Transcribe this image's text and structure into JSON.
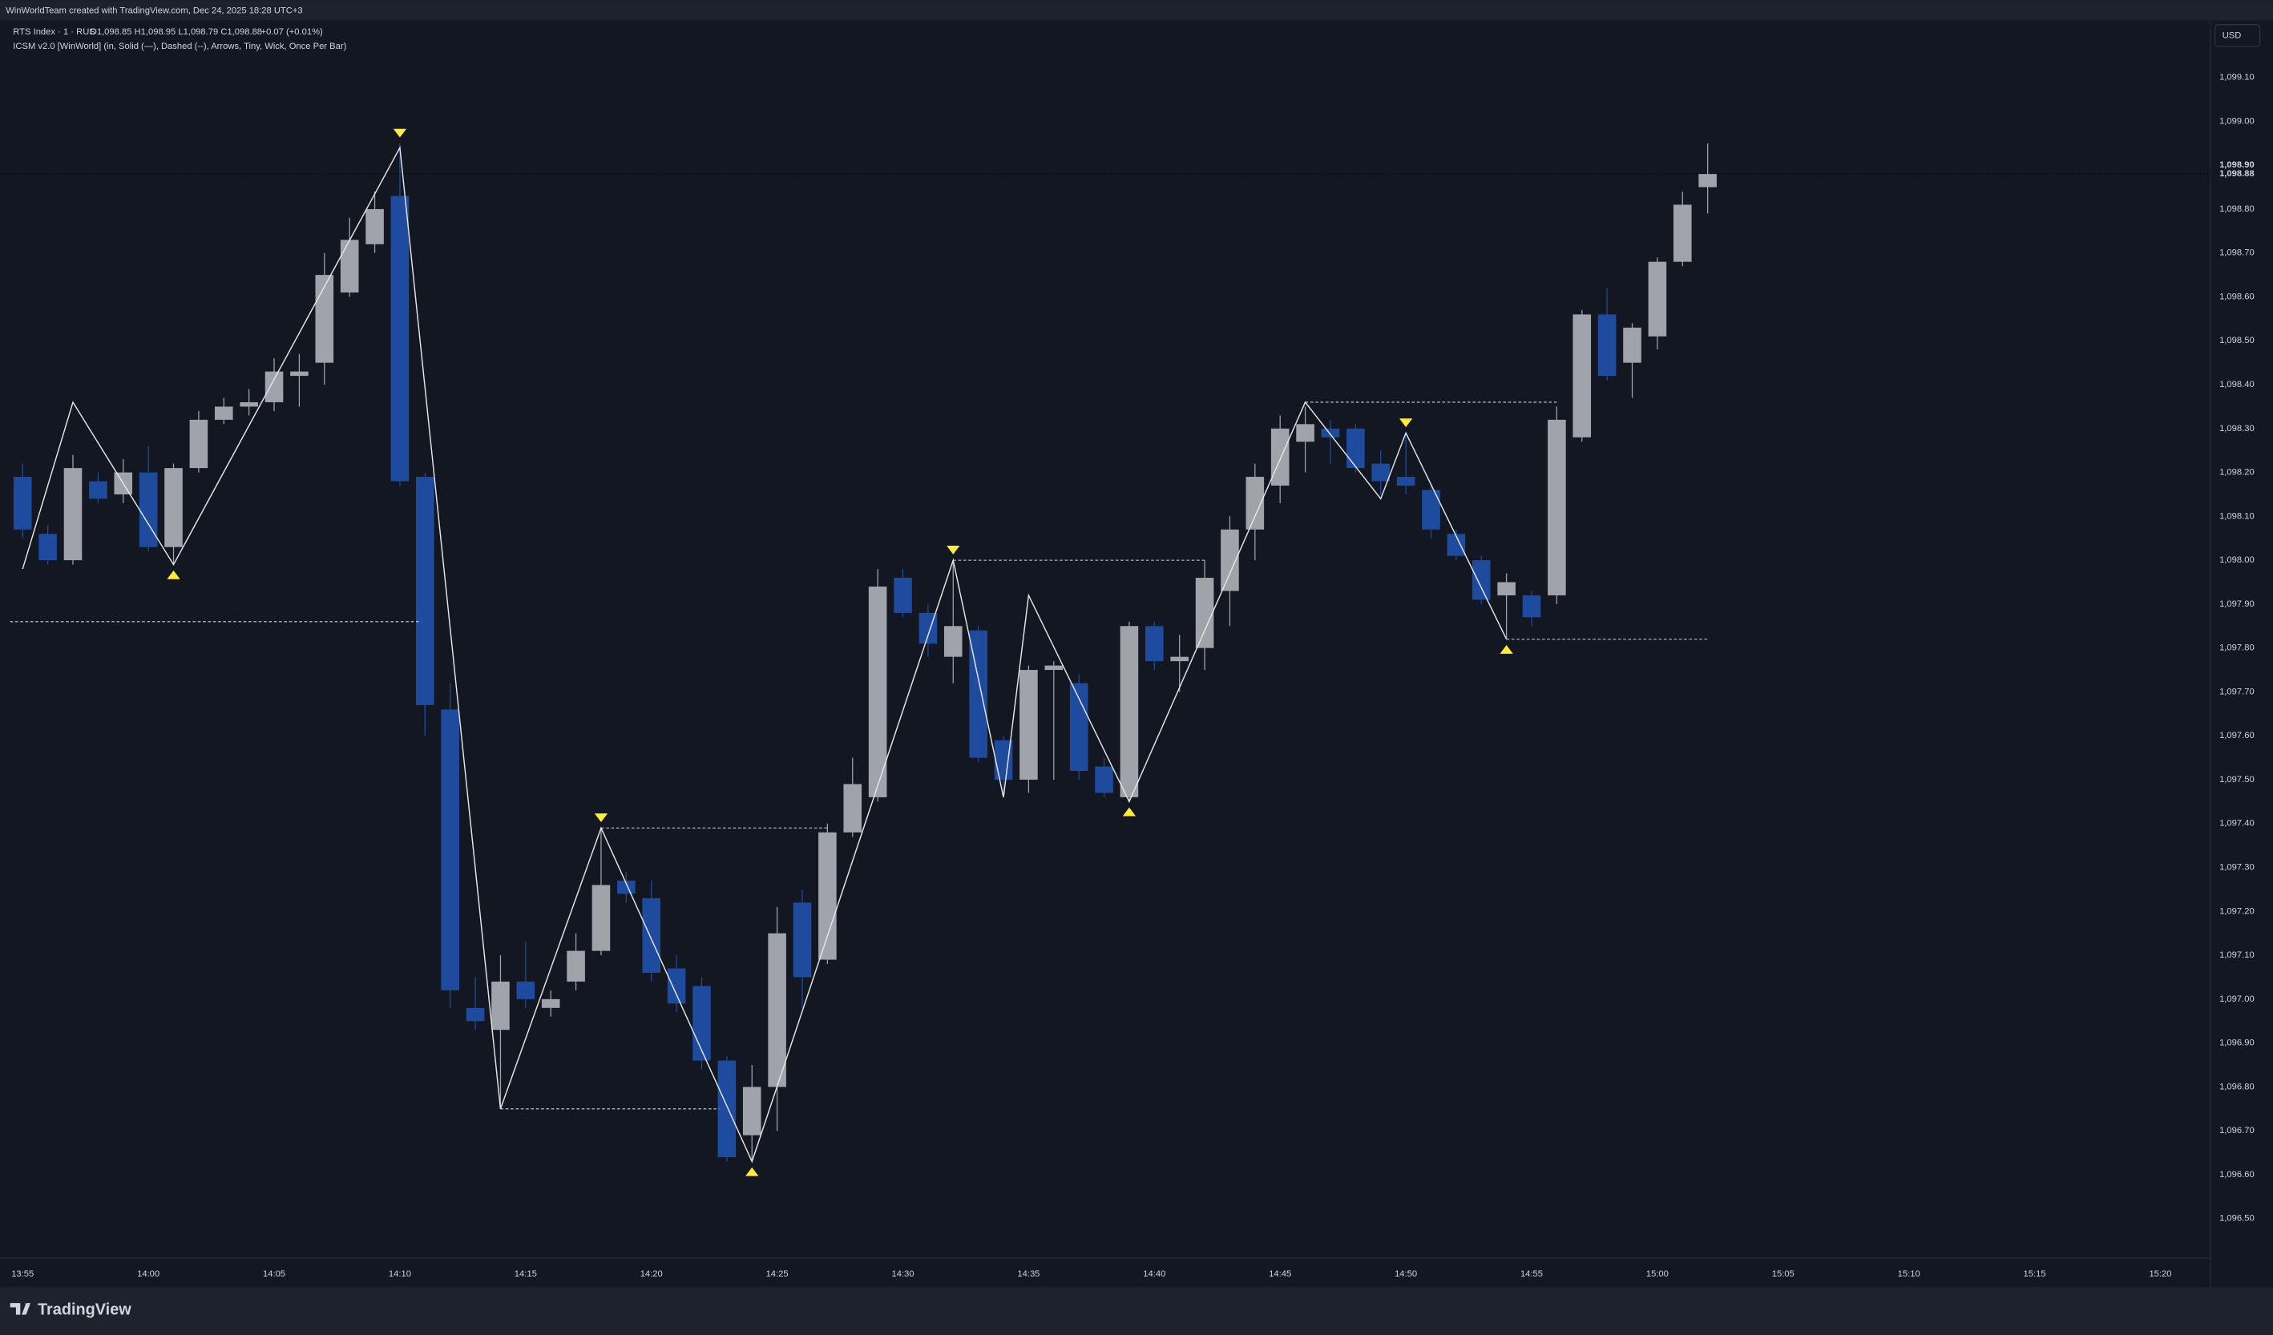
{
  "header": {
    "credit": "WinWorldTeam created with TradingView.com, Dec 24, 2025 18:28 UTC+3"
  },
  "footer": {
    "logo": "TradingView"
  },
  "chart_data": {
    "type": "candlestick",
    "title": "RTS Index · 1 · RUS",
    "ohlc_legend": "O1,098.85  H1,098.95  L1,098.79  C1,098.88",
    "change_legend": "+0.07 (+0.01%)",
    "indicator": "ICSM v2.0 [WinWorld] (in, Solid (—), Dashed (--), Arrows, Tiny, Wick, Once Per Bar)",
    "currency": "USD",
    "up_color": "#a1a3ab",
    "down_color": "#1f4b9e",
    "x": [
      835,
      836,
      837,
      838,
      839,
      840,
      841,
      842,
      843,
      844,
      845,
      846,
      847,
      848,
      849,
      850,
      851,
      852,
      853,
      854,
      855,
      856,
      857,
      858,
      859,
      860,
      861,
      862,
      863,
      864,
      865,
      866,
      867,
      868,
      869,
      870,
      871,
      872,
      873,
      874,
      875,
      876,
      877,
      878,
      879,
      880,
      881,
      882,
      883,
      884,
      885,
      886,
      887,
      888,
      889,
      890,
      891,
      892,
      893,
      894,
      895,
      896,
      897,
      898,
      899,
      900,
      901,
      902
    ],
    "open": [
      1098.19,
      1098.06,
      1098.0,
      1098.18,
      1098.15,
      1098.2,
      1098.03,
      1098.21,
      1098.32,
      1098.35,
      1098.36,
      1098.42,
      1098.45,
      1098.61,
      1098.72,
      1098.83,
      1098.19,
      1097.66,
      1096.98,
      1096.93,
      1097.04,
      1096.98,
      1097.04,
      1097.11,
      1097.27,
      1097.23,
      1097.07,
      1097.03,
      1096.86,
      1096.69,
      1096.8,
      1097.22,
      1097.09,
      1097.38,
      1097.46,
      1097.96,
      1097.88,
      1097.78,
      1097.84,
      1097.59,
      1097.5,
      1097.75,
      1097.72,
      1097.53,
      1097.46,
      1097.85,
      1097.77,
      1097.8,
      1097.93,
      1098.07,
      1098.17,
      1098.27,
      1098.3,
      1098.3,
      1098.22,
      1098.19,
      1098.16,
      1098.06,
      1098.0,
      1097.92,
      1097.92,
      1097.92,
      1098.28,
      1098.56,
      1098.45,
      1098.51,
      1098.68,
      1098.85
    ],
    "high": [
      1098.22,
      1098.08,
      1098.24,
      1098.2,
      1098.23,
      1098.26,
      1098.22,
      1098.34,
      1098.37,
      1098.39,
      1098.46,
      1098.47,
      1098.7,
      1098.78,
      1098.84,
      1098.95,
      1098.2,
      1097.72,
      1097.05,
      1097.1,
      1097.13,
      1097.02,
      1097.15,
      1097.39,
      1097.29,
      1097.27,
      1097.1,
      1097.05,
      1096.87,
      1096.85,
      1097.21,
      1097.25,
      1097.4,
      1097.55,
      1097.98,
      1097.98,
      1097.9,
      1098.0,
      1097.85,
      1097.6,
      1097.76,
      1097.77,
      1097.74,
      1097.55,
      1097.86,
      1097.86,
      1097.83,
      1098.0,
      1098.1,
      1098.22,
      1098.33,
      1098.35,
      1098.32,
      1098.31,
      1098.25,
      1098.29,
      1098.17,
      1098.07,
      1098.01,
      1097.97,
      1097.93,
      1098.35,
      1098.57,
      1098.62,
      1098.54,
      1098.69,
      1098.84,
      1098.95
    ],
    "low": [
      1098.05,
      1097.99,
      1097.99,
      1098.13,
      1098.13,
      1098.02,
      1097.99,
      1098.2,
      1098.31,
      1098.33,
      1098.34,
      1098.35,
      1098.4,
      1098.6,
      1098.7,
      1098.17,
      1097.6,
      1096.98,
      1096.93,
      1096.75,
      1096.98,
      1096.96,
      1097.02,
      1097.1,
      1097.22,
      1097.04,
      1096.97,
      1096.84,
      1096.63,
      1096.63,
      1096.7,
      1096.98,
      1097.08,
      1097.37,
      1097.45,
      1097.87,
      1097.78,
      1097.72,
      1097.54,
      1097.46,
      1097.47,
      1097.5,
      1097.5,
      1097.46,
      1097.45,
      1097.75,
      1097.7,
      1097.75,
      1097.85,
      1098.0,
      1098.13,
      1098.2,
      1098.22,
      1098.2,
      1098.15,
      1098.15,
      1098.05,
      1098.0,
      1097.9,
      1097.82,
      1097.85,
      1097.9,
      1098.27,
      1098.41,
      1098.37,
      1098.48,
      1098.67,
      1098.79
    ],
    "close": [
      1098.07,
      1098.0,
      1098.21,
      1098.14,
      1098.2,
      1098.03,
      1098.21,
      1098.32,
      1098.35,
      1098.36,
      1098.43,
      1098.43,
      1098.65,
      1098.73,
      1098.8,
      1098.18,
      1097.67,
      1097.02,
      1096.95,
      1097.04,
      1097.0,
      1097.0,
      1097.11,
      1097.26,
      1097.24,
      1097.06,
      1096.99,
      1096.86,
      1096.64,
      1096.8,
      1097.15,
      1097.05,
      1097.38,
      1097.49,
      1097.94,
      1097.88,
      1097.81,
      1097.85,
      1097.55,
      1097.5,
      1097.75,
      1097.76,
      1097.52,
      1097.47,
      1097.85,
      1097.77,
      1097.78,
      1097.96,
      1098.07,
      1098.19,
      1098.3,
      1098.31,
      1098.28,
      1098.21,
      1098.18,
      1098.17,
      1098.07,
      1098.01,
      1097.91,
      1097.95,
      1097.87,
      1098.32,
      1098.56,
      1098.42,
      1098.53,
      1098.68,
      1098.81,
      1098.88
    ],
    "zigzag": {
      "color": "#e6e6e6",
      "x": [
        835,
        837,
        841,
        850,
        854,
        858,
        864,
        872,
        874,
        875,
        879,
        886,
        889,
        890,
        894
      ],
      "y": [
        1097.98,
        1098.36,
        1097.99,
        1098.94,
        1096.75,
        1097.39,
        1096.63,
        1098.0,
        1097.46,
        1097.92,
        1097.45,
        1098.36,
        1098.14,
        1098.29,
        1097.82
      ]
    },
    "levels": [
      {
        "x": [
          834.5,
          850.85
        ],
        "y": 1097.86
      },
      {
        "x": [
          854,
          862.7
        ],
        "y": 1096.75
      },
      {
        "x": [
          858,
          867
        ],
        "y": 1097.39
      },
      {
        "x": [
          872,
          882
        ],
        "y": 1098.0
      },
      {
        "x": [
          886,
          896
        ],
        "y": 1098.36
      },
      {
        "x": [
          894,
          902
        ],
        "y": 1097.82
      }
    ],
    "marker_color": "#ffeb3b",
    "pivot_highs": [
      850,
      858,
      872,
      890
    ],
    "pivot_lows": [
      841,
      864,
      879,
      894
    ],
    "price_labels": [
      {
        "value": 1098.9,
        "label": "1,098.90"
      },
      {
        "value": 1098.88,
        "label": "1,098.88"
      }
    ],
    "grid": false,
    "xlim": [
      834.1,
      922.0
    ],
    "xticks": [
      {
        "value": 835,
        "label": "13:55"
      },
      {
        "value": 840,
        "label": "14:00"
      },
      {
        "value": 845,
        "label": "14:05"
      },
      {
        "value": 850,
        "label": "14:10"
      },
      {
        "value": 855,
        "label": "14:15"
      },
      {
        "value": 860,
        "label": "14:20"
      },
      {
        "value": 865,
        "label": "14:25"
      },
      {
        "value": 870,
        "label": "14:30"
      },
      {
        "value": 875,
        "label": "14:35"
      },
      {
        "value": 880,
        "label": "14:40"
      },
      {
        "value": 885,
        "label": "14:45"
      },
      {
        "value": 890,
        "label": "14:50"
      },
      {
        "value": 895,
        "label": "14:55"
      },
      {
        "value": 900,
        "label": "15:00"
      },
      {
        "value": 905,
        "label": "15:05"
      },
      {
        "value": 910,
        "label": "15:10"
      },
      {
        "value": 915,
        "label": "15:15"
      },
      {
        "value": 920,
        "label": "15:20"
      }
    ],
    "ylim": [
      1096.41,
      1099.23
    ],
    "yticks": [
      {
        "value": 1096.5,
        "label": "1,096.50"
      },
      {
        "value": 1096.6,
        "label": "1,096.60"
      },
      {
        "value": 1096.7,
        "label": "1,096.70"
      },
      {
        "value": 1096.8,
        "label": "1,096.80"
      },
      {
        "value": 1096.9,
        "label": "1,096.90"
      },
      {
        "value": 1097.0,
        "label": "1,097.00"
      },
      {
        "value": 1097.1,
        "label": "1,097.10"
      },
      {
        "value": 1097.2,
        "label": "1,097.20"
      },
      {
        "value": 1097.3,
        "label": "1,097.30"
      },
      {
        "value": 1097.4,
        "label": "1,097.40"
      },
      {
        "value": 1097.5,
        "label": "1,097.50"
      },
      {
        "value": 1097.6,
        "label": "1,097.60"
      },
      {
        "value": 1097.7,
        "label": "1,097.70"
      },
      {
        "value": 1097.8,
        "label": "1,097.80"
      },
      {
        "value": 1097.9,
        "label": "1,097.90"
      },
      {
        "value": 1098.0,
        "label": "1,098.00"
      },
      {
        "value": 1098.1,
        "label": "1,098.10"
      },
      {
        "value": 1098.2,
        "label": "1,098.20"
      },
      {
        "value": 1098.3,
        "label": "1,098.30"
      },
      {
        "value": 1098.4,
        "label": "1,098.40"
      },
      {
        "value": 1098.5,
        "label": "1,098.50"
      },
      {
        "value": 1098.6,
        "label": "1,098.60"
      },
      {
        "value": 1098.7,
        "label": "1,098.70"
      },
      {
        "value": 1098.8,
        "label": "1,098.80"
      },
      {
        "value": 1099.0,
        "label": "1,099.00"
      },
      {
        "value": 1099.1,
        "label": "1,099.10"
      }
    ]
  }
}
